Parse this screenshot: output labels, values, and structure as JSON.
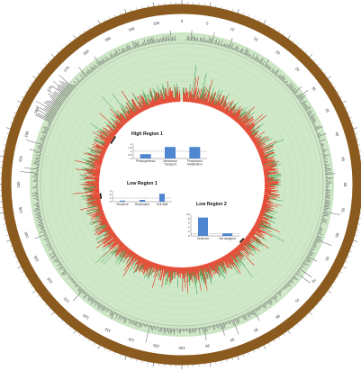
{
  "chart_data": {
    "type": "circular-genome",
    "title": "",
    "coordinate_ticks": [
      "0",
      "5",
      "10",
      "15",
      "20",
      "25",
      "30",
      "35",
      "40",
      "45",
      "50",
      "55",
      "60",
      "65",
      "70",
      "75",
      "80",
      "85",
      "90",
      "95",
      "100",
      "105",
      "110",
      "115",
      "120",
      "125",
      "130",
      "135",
      "140",
      "145",
      "150",
      "155",
      "160",
      "165",
      "170",
      "175",
      "180",
      "185",
      "190",
      "195"
    ],
    "colors": {
      "outer_ring": "#8a5a1e",
      "background_band": "#cfe8c8",
      "positive_track": "#2e9a46",
      "negative_track": "#e8321e",
      "outer_histogram": "#6a6a6a",
      "inset_bar": "#4f86d0"
    },
    "insets": [
      {
        "title": "High Region 1",
        "categories": [
          "Photosynthesis",
          "Membrane Transport",
          "Phosphorus Metabolism"
        ],
        "values": [
          0.6,
          1.6,
          1.6
        ],
        "yticks": [
          "0",
          "0.5",
          "1",
          "1.5",
          "2"
        ],
        "ylim": [
          0,
          2
        ],
        "reference": 1
      },
      {
        "title": "Low Region 1",
        "categories": [
          "Virulence",
          "Respiration",
          "Cell Wall"
        ],
        "values": [
          0.3,
          0.5,
          2.2
        ],
        "yticks": [
          "0",
          "1",
          "2",
          "3"
        ],
        "ylim": [
          0,
          3
        ],
        "reference": 1
      },
      {
        "title": "Low Region 2",
        "categories": [
          "Virulence",
          "Not assigned"
        ],
        "values": [
          8.5,
          1.2
        ],
        "yticks": [
          "0",
          "2",
          "4",
          "6",
          "8",
          "10"
        ],
        "ylim": [
          0,
          10
        ],
        "reference": 1
      }
    ]
  }
}
